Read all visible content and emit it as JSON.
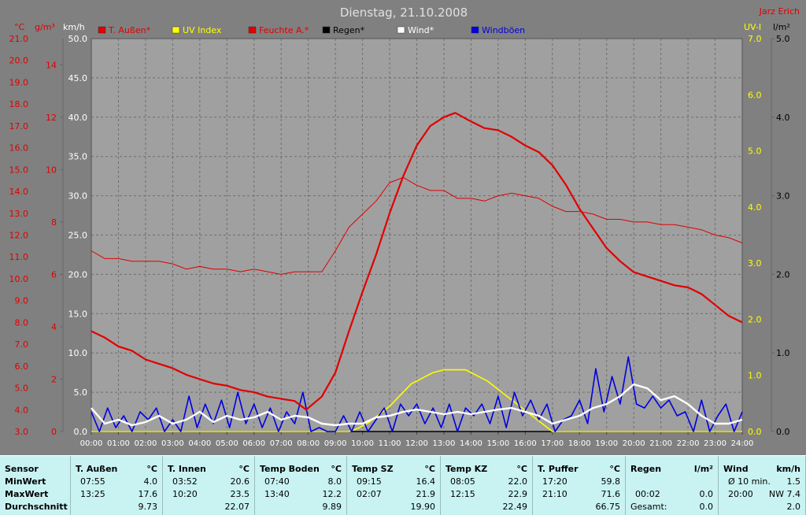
{
  "title": "Dienstag, 21.10.2008",
  "author": "Jarz Erich",
  "colors": {
    "background": "#808080",
    "plot_bg": "#a0a0a0",
    "grid": "#6e6e6e",
    "temp": "#e00000",
    "humidity": "#e00000",
    "uv": "#ffff00",
    "rain": "#000000",
    "wind": "#ffffff",
    "gust": "#0000e0",
    "table_bg": "#c9f3f3"
  },
  "chart_data": {
    "type": "line",
    "title": "Dienstag, 21.10.2008",
    "x_ticks": [
      "00:00",
      "01:00",
      "02:00",
      "03:00",
      "04:00",
      "05:00",
      "06:00",
      "07:00",
      "08:00",
      "09:00",
      "10:00",
      "11:00",
      "12:00",
      "13:00",
      "14:00",
      "15:00",
      "16:00",
      "17:00",
      "18:00",
      "19:00",
      "20:00",
      "21:00",
      "22:00",
      "23:00",
      "24:00"
    ],
    "xlim": [
      0,
      24
    ],
    "axes": {
      "celsius": {
        "label": "°C",
        "range": [
          3.0,
          21.0
        ],
        "ticks": [
          "21.0",
          "20.0",
          "19.0",
          "18.0",
          "17.0",
          "16.0",
          "15.0",
          "14.0",
          "13.0",
          "12.0",
          "11.0",
          "10.0",
          "9.0",
          "8.0",
          "7.0",
          "6.0",
          "5.0",
          "4.0",
          "3.0"
        ]
      },
      "gm3": {
        "label": "g/m³",
        "range": [
          0,
          15
        ],
        "ticks": [
          "14",
          "12",
          "10",
          "8",
          "6",
          "4",
          "2",
          "0"
        ]
      },
      "kmh": {
        "label": "km/h",
        "range": [
          0,
          50
        ],
        "ticks": [
          "50.0",
          "45.0",
          "40.0",
          "35.0",
          "30.0",
          "25.0",
          "20.0",
          "15.0",
          "10.0",
          "5.0",
          "0.0"
        ]
      },
      "uv": {
        "label": "UV-I",
        "range": [
          0,
          7
        ],
        "ticks": [
          "7.0",
          "6.0",
          "5.0",
          "4.0",
          "3.0",
          "2.0",
          "1.0",
          "0.0"
        ]
      },
      "rain": {
        "label": "l/m²",
        "range": [
          0,
          5
        ],
        "ticks": [
          "5.0",
          "4.0",
          "3.0",
          "2.0",
          "1.0",
          "0.0"
        ]
      }
    },
    "legend": [
      {
        "name": "T. Außen*",
        "color": "#e00000"
      },
      {
        "name": "UV Index",
        "color": "#ffff00"
      },
      {
        "name": "Feuchte A.*",
        "color": "#e00000"
      },
      {
        "name": "Regen*",
        "color": "#000000"
      },
      {
        "name": "Wind*",
        "color": "#ffffff"
      },
      {
        "name": "Windböen",
        "color": "#0000e0"
      }
    ],
    "series": [
      {
        "name": "T. Außen*",
        "axis": "celsius",
        "x": [
          0,
          0.5,
          1,
          1.5,
          2,
          2.5,
          3,
          3.5,
          4,
          4.5,
          5,
          5.5,
          6,
          6.5,
          7,
          7.5,
          7.92,
          8.5,
          9,
          9.5,
          10,
          10.5,
          11,
          11.5,
          12,
          12.5,
          13,
          13.42,
          14,
          14.5,
          15,
          15.5,
          16,
          16.5,
          17,
          17.5,
          18,
          18.5,
          19,
          19.5,
          20,
          20.5,
          21,
          21.5,
          22,
          22.5,
          23,
          23.5,
          24
        ],
        "y": [
          7.6,
          7.3,
          6.9,
          6.7,
          6.3,
          6.1,
          5.9,
          5.6,
          5.4,
          5.2,
          5.1,
          4.9,
          4.8,
          4.6,
          4.5,
          4.4,
          4.0,
          4.6,
          5.7,
          7.6,
          9.4,
          11.1,
          13.0,
          14.7,
          16.1,
          17.0,
          17.4,
          17.6,
          17.2,
          16.9,
          16.8,
          16.5,
          16.1,
          15.8,
          15.2,
          14.3,
          13.2,
          12.3,
          11.4,
          10.8,
          10.3,
          10.1,
          9.9,
          9.7,
          9.6,
          9.3,
          8.8,
          8.3,
          8.0
        ]
      },
      {
        "name": "Feuchte A.*",
        "axis": "gm3",
        "x": [
          0,
          0.5,
          1,
          1.5,
          2,
          2.5,
          3,
          3.5,
          4,
          4.5,
          5,
          5.5,
          6,
          6.5,
          7,
          7.5,
          8,
          8.5,
          9,
          9.5,
          10,
          10.5,
          11,
          11.5,
          12,
          12.5,
          13,
          13.5,
          14,
          14.5,
          15,
          15.5,
          16,
          16.5,
          17,
          17.5,
          18,
          18.5,
          19,
          19.5,
          20,
          20.5,
          21,
          21.5,
          22,
          22.5,
          23,
          23.5,
          24
        ],
        "y": [
          6.9,
          6.6,
          6.6,
          6.5,
          6.5,
          6.5,
          6.4,
          6.2,
          6.3,
          6.2,
          6.2,
          6.1,
          6.2,
          6.1,
          6.0,
          6.1,
          6.1,
          6.1,
          6.9,
          7.8,
          8.3,
          8.8,
          9.5,
          9.7,
          9.4,
          9.2,
          9.2,
          8.9,
          8.9,
          8.8,
          9.0,
          9.1,
          9.0,
          8.9,
          8.6,
          8.4,
          8.4,
          8.3,
          8.1,
          8.1,
          8.0,
          8.0,
          7.9,
          7.9,
          7.8,
          7.7,
          7.5,
          7.4,
          7.2
        ]
      },
      {
        "name": "UV Index",
        "axis": "uv",
        "x": [
          0,
          9.5,
          9.8,
          10.2,
          10.6,
          11,
          11.4,
          11.8,
          12.2,
          12.6,
          13,
          13.4,
          13.8,
          14.2,
          14.6,
          15,
          15.4,
          15.8,
          16.2,
          16.6,
          17,
          24
        ],
        "y": [
          0,
          0,
          0.05,
          0.15,
          0.3,
          0.45,
          0.65,
          0.85,
          0.95,
          1.05,
          1.1,
          1.1,
          1.1,
          1.0,
          0.9,
          0.75,
          0.6,
          0.45,
          0.3,
          0.15,
          0,
          0
        ]
      },
      {
        "name": "Regen*",
        "axis": "rain",
        "x": [
          0,
          24
        ],
        "y": [
          0,
          0
        ]
      },
      {
        "name": "Wind*",
        "axis": "kmh",
        "x": [
          0,
          0.5,
          1,
          1.5,
          2,
          2.5,
          3,
          3.5,
          4,
          4.5,
          5,
          5.5,
          6,
          6.5,
          7,
          7.5,
          8,
          8.5,
          9,
          9.5,
          10,
          10.5,
          11,
          11.5,
          12,
          12.5,
          13,
          13.5,
          14,
          14.5,
          15,
          15.5,
          16,
          16.5,
          17,
          17.5,
          18,
          18.5,
          19,
          19.5,
          20,
          20.5,
          21,
          21.5,
          22,
          22.5,
          23,
          23.5,
          24
        ],
        "y": [
          3.0,
          1.0,
          1.5,
          0.8,
          1.2,
          2.0,
          1.0,
          1.5,
          2.5,
          1.2,
          2.0,
          1.5,
          1.8,
          2.5,
          1.5,
          2.0,
          1.8,
          1.0,
          0.8,
          1.0,
          1.0,
          1.8,
          2.0,
          2.5,
          2.8,
          2.5,
          2.2,
          2.5,
          2.2,
          2.5,
          2.8,
          3.0,
          2.5,
          2.0,
          1.0,
          1.5,
          2.0,
          3.0,
          3.5,
          4.5,
          6.0,
          5.5,
          4.0,
          4.5,
          3.5,
          2.0,
          1.0,
          1.0,
          1.5
        ]
      },
      {
        "name": "Windböen",
        "axis": "kmh",
        "x": [
          0,
          0.3,
          0.6,
          0.9,
          1.2,
          1.5,
          1.8,
          2.1,
          2.4,
          2.7,
          3,
          3.3,
          3.6,
          3.9,
          4.2,
          4.5,
          4.8,
          5.1,
          5.4,
          5.7,
          6,
          6.3,
          6.6,
          6.9,
          7.2,
          7.5,
          7.8,
          8.1,
          8.4,
          8.7,
          9,
          9.3,
          9.6,
          9.9,
          10.2,
          10.5,
          10.8,
          11.1,
          11.4,
          11.7,
          12,
          12.3,
          12.6,
          12.9,
          13.2,
          13.5,
          13.8,
          14.1,
          14.4,
          14.7,
          15,
          15.3,
          15.6,
          15.9,
          16.2,
          16.5,
          16.8,
          17.1,
          17.4,
          17.7,
          18,
          18.3,
          18.6,
          18.9,
          19.2,
          19.5,
          19.8,
          20.1,
          20.4,
          20.7,
          21,
          21.3,
          21.6,
          21.9,
          22.2,
          22.5,
          22.8,
          23.1,
          23.4,
          23.7,
          24
        ],
        "y": [
          2.5,
          0,
          3.0,
          0.5,
          2.0,
          0,
          2.5,
          1.5,
          3.0,
          0,
          1.5,
          0,
          4.5,
          0.5,
          3.5,
          1.0,
          4.0,
          0.5,
          5.0,
          1.0,
          3.5,
          0.5,
          3.0,
          0,
          2.5,
          1.0,
          5.0,
          0,
          0.5,
          0,
          0,
          2.0,
          0,
          2.5,
          0,
          1.5,
          3.0,
          0,
          3.5,
          2.0,
          3.5,
          1.0,
          3.0,
          0.5,
          3.5,
          0,
          3.0,
          2.0,
          3.5,
          1.0,
          4.5,
          0.5,
          5.0,
          2.0,
          4.0,
          1.5,
          3.5,
          0,
          1.5,
          2.0,
          4.0,
          1.0,
          8.0,
          2.5,
          7.0,
          3.5,
          9.5,
          3.5,
          3.0,
          4.5,
          3.0,
          4.0,
          2.0,
          2.5,
          0,
          4.0,
          0,
          2.0,
          3.5,
          0,
          2.5
        ]
      }
    ]
  },
  "stats": {
    "row_labels": [
      "Sensor",
      "MinWert",
      "MaxWert",
      "Durchschnitt"
    ],
    "columns": [
      {
        "name": "T. Außen",
        "unit": "°C",
        "min_time": "07:55",
        "min": "4.0",
        "max_time": "13:25",
        "max": "17.6",
        "avg": "9.73"
      },
      {
        "name": "T. Innen",
        "unit": "°C",
        "min_time": "03:52",
        "min": "20.6",
        "max_time": "10:20",
        "max": "23.5",
        "avg": "22.07"
      },
      {
        "name": "Temp Boden",
        "unit": "°C",
        "min_time": "07:40",
        "min": "8.0",
        "max_time": "13:40",
        "max": "12.2",
        "avg": "9.89"
      },
      {
        "name": "Temp SZ",
        "unit": "°C",
        "min_time": "09:15",
        "min": "16.4",
        "max_time": "02:07",
        "max": "21.9",
        "avg": "19.90"
      },
      {
        "name": "Temp KZ",
        "unit": "°C",
        "min_time": "08:05",
        "min": "22.0",
        "max_time": "12:15",
        "max": "22.9",
        "avg": "22.49"
      },
      {
        "name": "T. Puffer",
        "unit": "°C",
        "min_time": "17:20",
        "min": "59.8",
        "max_time": "21:10",
        "max": "71.6",
        "avg": "66.75"
      },
      {
        "name": "Regen",
        "unit": "l/m²",
        "min_time": "",
        "min": "",
        "max_time": "00:02",
        "max": "0.0",
        "avg_label": "Gesamt:",
        "avg": "0.0"
      },
      {
        "name": "Wind",
        "unit": "km/h",
        "min_time": "Ø 10 min.",
        "min": "1.5",
        "max_time": "20:00",
        "max": "NW 7.4",
        "avg": "2.0"
      }
    ]
  }
}
